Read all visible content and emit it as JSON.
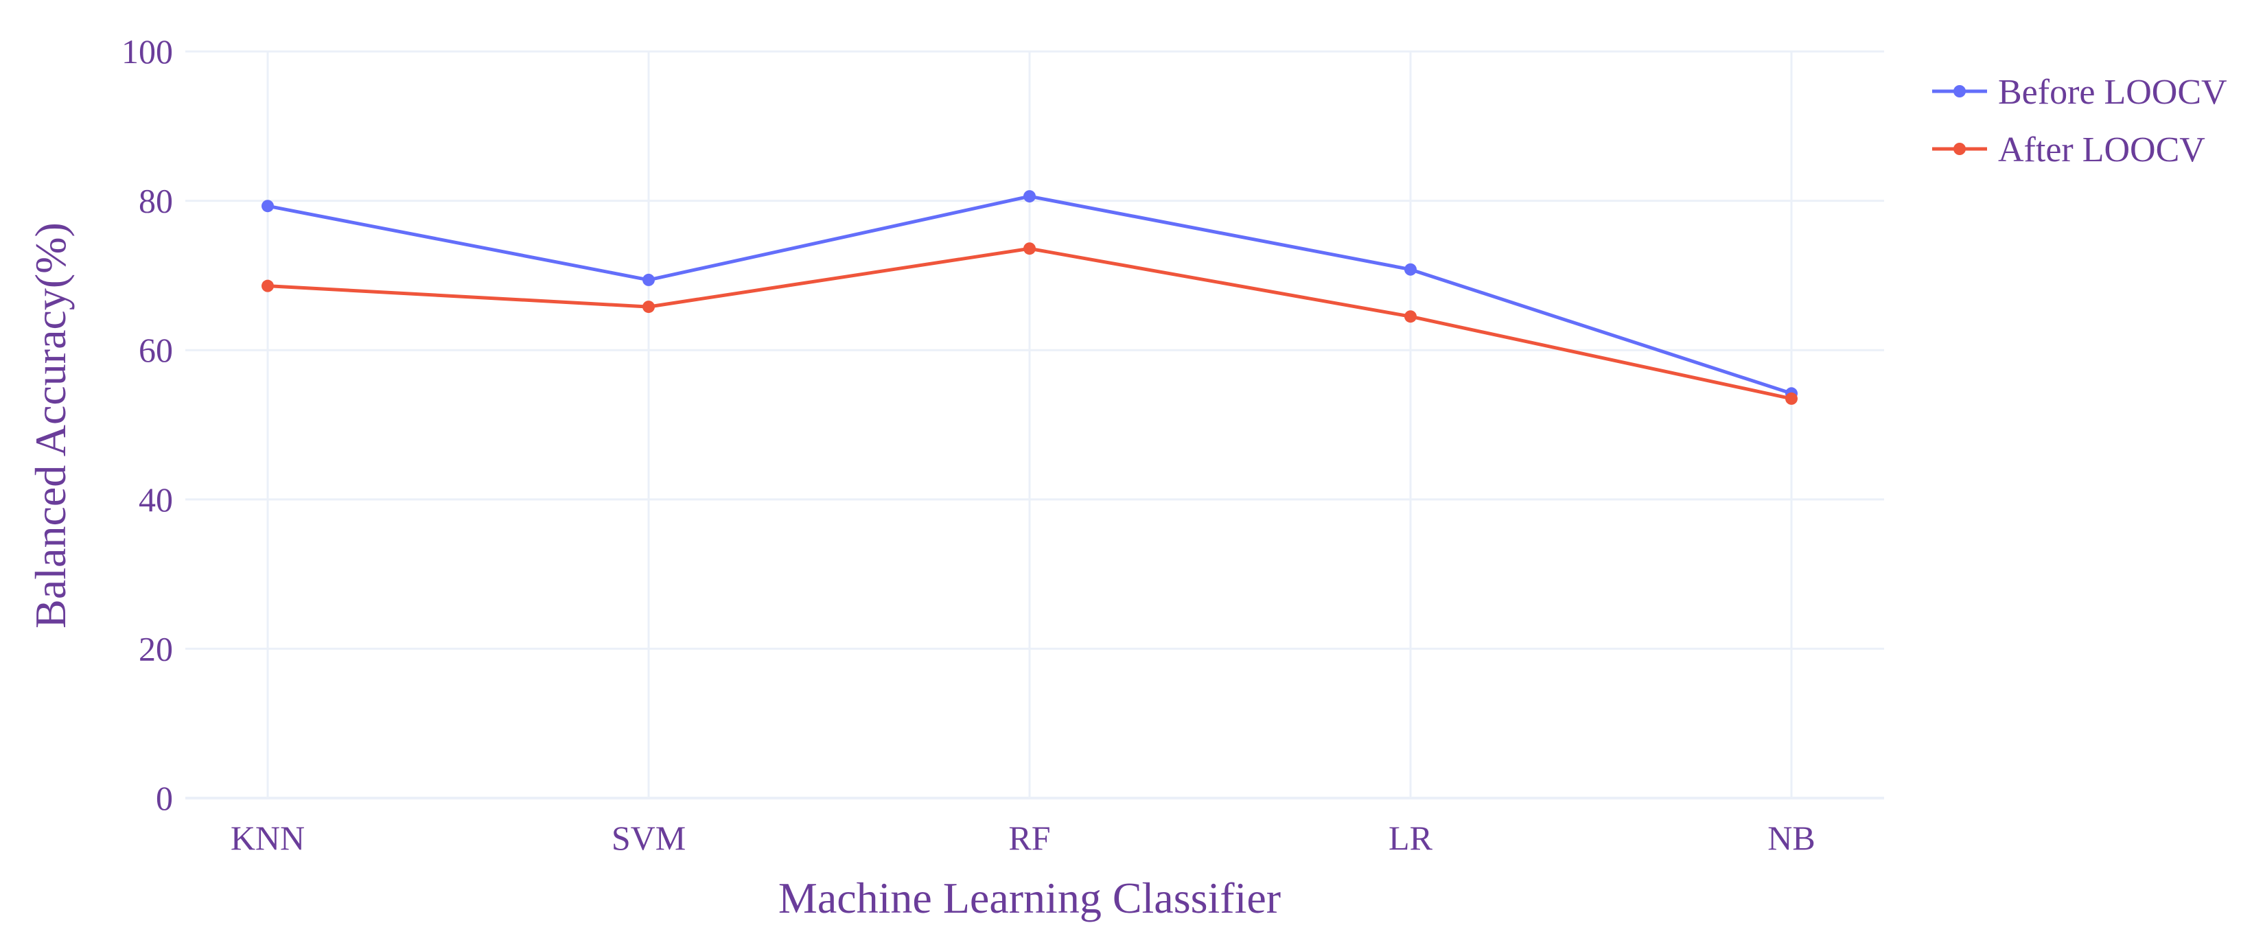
{
  "chart_data": {
    "type": "line",
    "categories": [
      "KNN",
      "SVM",
      "RF",
      "LR",
      "NB"
    ],
    "series": [
      {
        "name": "Before LOOCV",
        "color": "#636efa",
        "values": [
          79.3,
          69.4,
          80.6,
          70.8,
          54.2
        ]
      },
      {
        "name": "After LOOCV",
        "color": "#ef553b",
        "values": [
          68.6,
          65.8,
          73.6,
          64.5,
          53.5
        ]
      }
    ],
    "xlabel": "Machine Learning Classifier",
    "ylabel": "Balanced Accuracy(%)",
    "ylim": [
      0,
      100
    ],
    "yticks": [
      "0",
      "20",
      "40",
      "60",
      "80",
      "100"
    ],
    "grid": true,
    "legend_position": "top-right",
    "colors": {
      "text": "#6a3d9a",
      "grid": "#ebf0f8",
      "background": "#ffffff"
    }
  }
}
